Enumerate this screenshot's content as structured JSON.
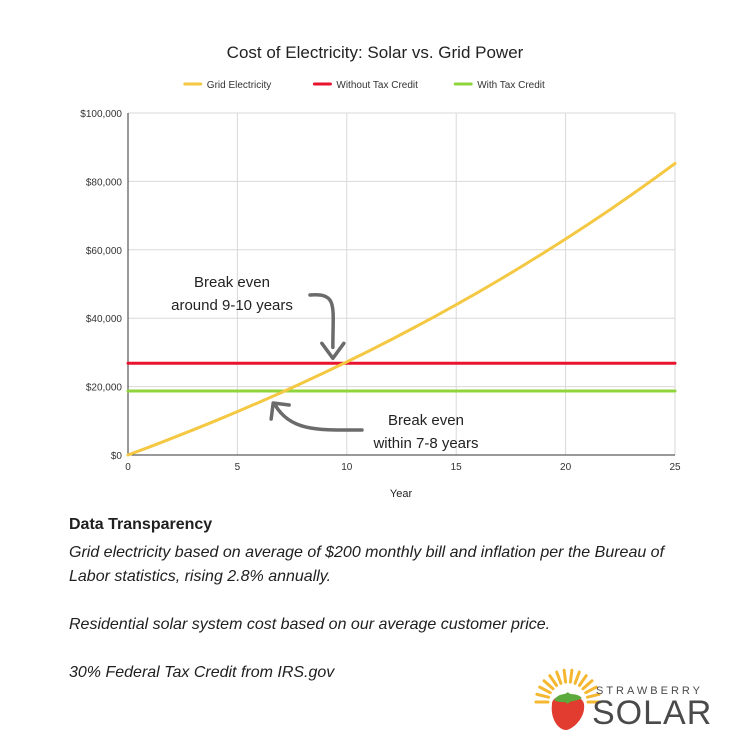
{
  "chart_data": {
    "type": "line",
    "title": "Cost of Electricity: Solar vs. Grid Power",
    "xlabel": "Year",
    "ylabel": "",
    "xlim": [
      0,
      25
    ],
    "ylim": [
      0,
      100000
    ],
    "x_ticks": [
      0,
      5,
      10,
      15,
      20,
      25
    ],
    "y_ticks": [
      0,
      20000,
      40000,
      60000,
      80000,
      100000
    ],
    "y_tick_labels": [
      "$0",
      "$20,000",
      "$40,000",
      "$60,000",
      "$80,000",
      "$100,000"
    ],
    "grid": true,
    "legend_position": "top",
    "series": [
      {
        "name": "Grid Electricity",
        "color": "#F4C842",
        "x": [
          0,
          1,
          2,
          3,
          4,
          5,
          6,
          7,
          8,
          9,
          10,
          11,
          12,
          13,
          14,
          15,
          16,
          17,
          18,
          19,
          20,
          21,
          22,
          23,
          24,
          25
        ],
        "y": [
          0,
          2400,
          4870,
          7400,
          10000,
          12680,
          15430,
          18260,
          21170,
          24160,
          27230,
          30390,
          33640,
          36980,
          40420,
          43950,
          47580,
          51310,
          55150,
          59100,
          63160,
          67330,
          71620,
          76030,
          80570,
          85230
        ]
      },
      {
        "name": "Without Tax Credit",
        "color": "#E8132E",
        "x": [
          0,
          25
        ],
        "y": [
          26800,
          26800
        ]
      },
      {
        "name": "With Tax Credit",
        "color": "#8FD43A",
        "x": [
          0,
          25
        ],
        "y": [
          18700,
          18700
        ]
      }
    ],
    "annotations": [
      {
        "lines": [
          "Break even",
          "around 9-10 years"
        ],
        "target_x": 9.5,
        "target_y": 26800
      },
      {
        "lines": [
          "Break even",
          "within 7-8 years"
        ],
        "target_x": 7.0,
        "target_y": 18700
      }
    ]
  },
  "notes": {
    "heading": "Data Transparency",
    "paragraphs": [
      "Grid electricity based on average of $200 monthly bill and inflation per the Bureau of Labor statistics, rising 2.8% annually.",
      "Residential solar system cost based on our average customer price.",
      "30% Federal Tax Credit from IRS.gov"
    ]
  },
  "logo": {
    "top_word": "STRAWBERRY",
    "bottom_word": "SOLAR",
    "colors": {
      "sun": "#F5B731",
      "berry": "#E23B2F",
      "leaf": "#5DAA3C",
      "text": "#4A4A4A"
    }
  }
}
